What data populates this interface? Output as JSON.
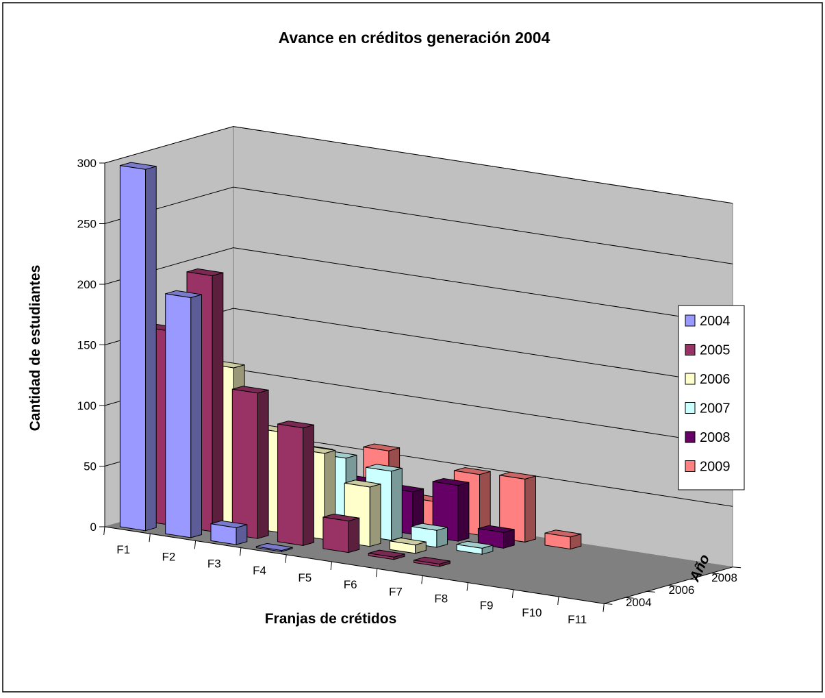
{
  "chart_data": {
    "type": "bar",
    "subtype": "3d-column",
    "title": "Avance en créditos generación 2004",
    "xlabel": "Franjas de crétidos",
    "ylabel": "Cantidad de estudiantes",
    "zlabel": "Año",
    "ylim": [
      0,
      300
    ],
    "yticks": [
      "0",
      "50",
      "100",
      "150",
      "200",
      "250",
      "300"
    ],
    "categories": [
      "F1",
      "F2",
      "F3",
      "F4",
      "F5",
      "F6",
      "F7",
      "F8",
      "F9",
      "F10",
      "F11"
    ],
    "depth_ticks": [
      "2004",
      "2006",
      "2008"
    ],
    "legend_position": "right",
    "grid": true,
    "series": [
      {
        "name": "2004",
        "color": "#9999FF",
        "values": [
          298,
          198,
          14,
          1,
          0,
          0,
          0,
          0,
          0,
          0,
          0
        ]
      },
      {
        "name": "2005",
        "color": "#993366",
        "values": [
          160,
          211,
          120,
          97,
          26,
          2,
          2,
          0,
          0,
          0,
          0
        ]
      },
      {
        "name": "2006",
        "color": "#FFFFCC",
        "values": [
          103,
          130,
          83,
          71,
          49,
          7,
          0,
          0,
          0,
          0,
          0
        ]
      },
      {
        "name": "2007",
        "color": "#CCFFFF",
        "values": [
          79,
          94,
          66,
          62,
          57,
          14,
          5,
          0,
          0,
          0,
          0
        ]
      },
      {
        "name": "2008",
        "color": "#660066",
        "values": [
          53,
          50,
          56,
          37,
          35,
          46,
          13,
          0,
          0,
          0,
          0
        ]
      },
      {
        "name": "2009",
        "color": "#FF8080",
        "values": [
          26,
          30,
          40,
          58,
          22,
          50,
          52,
          10,
          0,
          0,
          0
        ]
      }
    ]
  }
}
